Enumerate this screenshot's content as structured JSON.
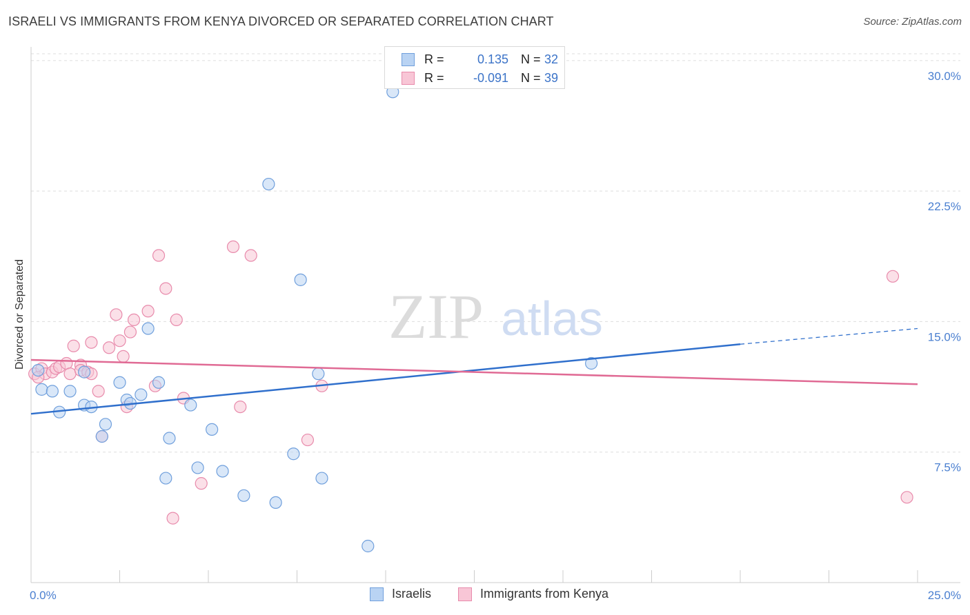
{
  "title": "ISRAELI VS IMMIGRANTS FROM KENYA DIVORCED OR SEPARATED CORRELATION CHART",
  "source": "Source: ZipAtlas.com",
  "watermark": {
    "zip": "ZIP",
    "atlas": "atlas"
  },
  "colors": {
    "blue_fill": "#b9d3f3",
    "blue_stroke": "#6f9fdc",
    "blue_line": "#2f6fcc",
    "pink_fill": "#f8c6d6",
    "pink_stroke": "#e88aab",
    "pink_line": "#e06a94",
    "grid": "#dddddd",
    "tick_text": "#4a7fd0"
  },
  "legend_top": {
    "rows": [
      {
        "r_label": "R =",
        "r_value": "0.135",
        "n_label": "N =",
        "n_value": "32"
      },
      {
        "r_label": "R =",
        "r_value": "-0.091",
        "n_label": "N =",
        "n_value": "39"
      }
    ]
  },
  "legend_bottom": {
    "items": [
      "Israelis",
      "Immigrants from Kenya"
    ]
  },
  "chart_data": {
    "type": "scatter",
    "title": "ISRAELI VS IMMIGRANTS FROM KENYA DIVORCED OR SEPARATED CORRELATION CHART",
    "xlabel": "",
    "ylabel": "Divorced or Separated",
    "xlim": [
      0,
      25
    ],
    "ylim": [
      0,
      31.5
    ],
    "x_tick_labels": [
      "0.0%",
      "25.0%"
    ],
    "y_ticks": [
      7.5,
      15.0,
      22.5,
      30.0
    ],
    "y_tick_labels": [
      "7.5%",
      "15.0%",
      "22.5%",
      "30.0%"
    ],
    "grid": true,
    "legend_position": "top-center",
    "series": [
      {
        "name": "Israelis",
        "r": 0.135,
        "n": 32,
        "points": [
          [
            0.2,
            12.2
          ],
          [
            0.3,
            11.1
          ],
          [
            0.6,
            11.0
          ],
          [
            0.8,
            9.8
          ],
          [
            1.1,
            11.0
          ],
          [
            1.5,
            12.1
          ],
          [
            1.5,
            10.2
          ],
          [
            1.7,
            10.1
          ],
          [
            2.0,
            8.4
          ],
          [
            2.1,
            9.1
          ],
          [
            2.5,
            11.5
          ],
          [
            2.7,
            10.5
          ],
          [
            2.8,
            10.3
          ],
          [
            3.1,
            10.8
          ],
          [
            3.3,
            14.6
          ],
          [
            3.6,
            11.5
          ],
          [
            3.8,
            6.0
          ],
          [
            3.9,
            8.3
          ],
          [
            4.5,
            10.2
          ],
          [
            4.7,
            6.6
          ],
          [
            5.1,
            8.8
          ],
          [
            5.4,
            6.4
          ],
          [
            6.0,
            5.0
          ],
          [
            6.7,
            22.9
          ],
          [
            6.9,
            4.6
          ],
          [
            7.4,
            7.4
          ],
          [
            7.6,
            17.4
          ],
          [
            8.1,
            12.0
          ],
          [
            8.2,
            6.0
          ],
          [
            9.5,
            2.1
          ],
          [
            10.2,
            28.2
          ],
          [
            15.8,
            12.6
          ]
        ],
        "trend": {
          "x": [
            0,
            20
          ],
          "y": [
            9.7,
            13.7
          ],
          "dashed_to": [
            25,
            14.6
          ]
        }
      },
      {
        "name": "Immigrants from Kenya",
        "r": -0.091,
        "n": 39,
        "points": [
          [
            0.1,
            12.0
          ],
          [
            0.3,
            12.3
          ],
          [
            0.4,
            12.0
          ],
          [
            0.6,
            12.1
          ],
          [
            0.7,
            12.3
          ],
          [
            0.8,
            12.4
          ],
          [
            1.0,
            12.6
          ],
          [
            1.1,
            12.0
          ],
          [
            1.2,
            13.6
          ],
          [
            1.4,
            12.5
          ],
          [
            1.4,
            12.2
          ],
          [
            1.6,
            12.1
          ],
          [
            1.7,
            12.0
          ],
          [
            1.7,
            13.8
          ],
          [
            1.9,
            11.0
          ],
          [
            2.0,
            8.4
          ],
          [
            2.2,
            13.5
          ],
          [
            2.4,
            15.4
          ],
          [
            2.5,
            13.9
          ],
          [
            2.6,
            13.0
          ],
          [
            2.7,
            10.1
          ],
          [
            2.8,
            14.4
          ],
          [
            2.9,
            15.1
          ],
          [
            3.3,
            15.6
          ],
          [
            3.5,
            11.3
          ],
          [
            3.6,
            18.8
          ],
          [
            3.8,
            16.9
          ],
          [
            4.0,
            3.7
          ],
          [
            4.1,
            15.1
          ],
          [
            4.3,
            10.6
          ],
          [
            4.8,
            5.7
          ],
          [
            5.7,
            19.3
          ],
          [
            5.9,
            10.1
          ],
          [
            6.2,
            18.8
          ],
          [
            7.8,
            8.2
          ],
          [
            8.2,
            11.3
          ],
          [
            24.3,
            17.6
          ],
          [
            24.7,
            4.9
          ],
          [
            0.2,
            11.8
          ]
        ],
        "trend": {
          "x": [
            0,
            25
          ],
          "y": [
            12.8,
            11.4
          ]
        }
      }
    ]
  }
}
